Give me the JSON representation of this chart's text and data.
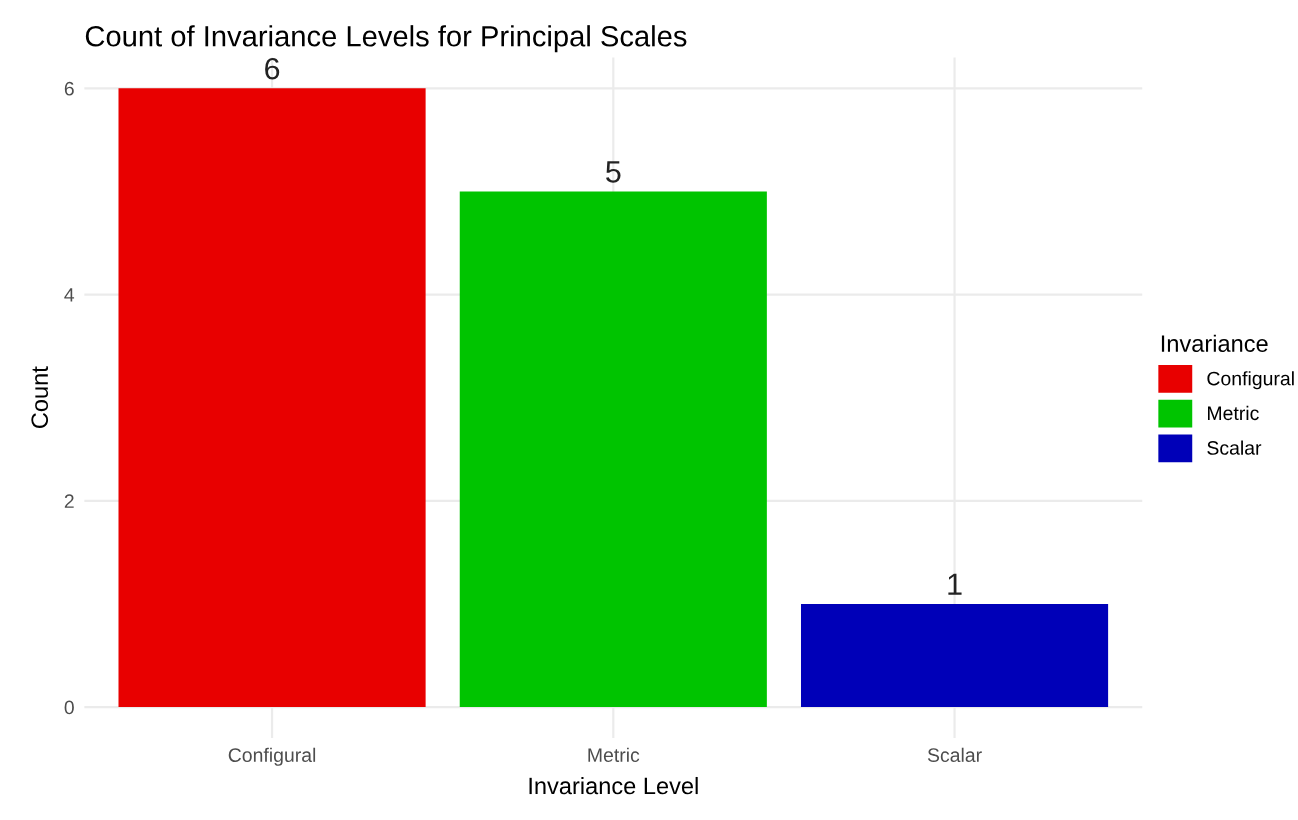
{
  "chart_data": {
    "type": "bar",
    "title": "Count of Invariance Levels for Principal Scales",
    "xlabel": "Invariance Level",
    "ylabel": "Count",
    "legend_title": "Invariance",
    "categories": [
      "Configural",
      "Metric",
      "Scalar"
    ],
    "series": [
      {
        "name": "Configural",
        "color": "#e80000",
        "values": [
          6,
          null,
          null
        ]
      },
      {
        "name": "Metric",
        "color": "#00c400",
        "values": [
          null,
          5,
          null
        ]
      },
      {
        "name": "Scalar",
        "color": "#0000b8",
        "values": [
          null,
          null,
          1
        ]
      }
    ],
    "ylim": [
      -0.3,
      6.3
    ],
    "yticks": [
      0,
      2,
      4,
      6
    ],
    "grid": true,
    "legend": "right",
    "data_labels": true
  }
}
